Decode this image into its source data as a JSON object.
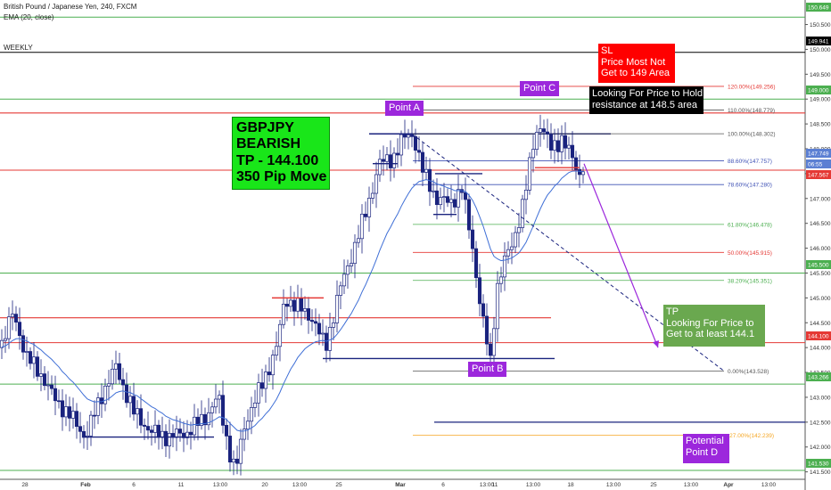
{
  "header": {
    "symbol": "British Pound / Japanese Yen, 240, FXCM",
    "indicator": "EMA (20, close)",
    "timeframe_label": "WEEKLY"
  },
  "chart_data": {
    "type": "candlestick",
    "symbol": "GBPJPY",
    "interval": "240",
    "ylim": [
      141.35,
      150.85
    ],
    "price_ticks": [
      150.5,
      150.0,
      149.5,
      149.0,
      148.5,
      148.0,
      147.5,
      147.0,
      146.5,
      146.0,
      145.5,
      145.0,
      144.5,
      144.0,
      143.5,
      143.0,
      142.5,
      142.0,
      141.5
    ],
    "time_ticks": [
      "28",
      "Feb",
      "6",
      "11",
      "13:00",
      "20",
      "13:00",
      "25",
      "Mar",
      "6",
      "13:00",
      "11",
      "13:00",
      "18",
      "13:00",
      "25",
      "13:00",
      "Apr",
      "13:00"
    ],
    "price_tags": [
      {
        "label": "150.649",
        "color": "#4caf50"
      },
      {
        "label": "149.941",
        "color": "#000000"
      },
      {
        "label": "149.000",
        "color": "#4caf50"
      },
      {
        "label": "147.749",
        "color": "#5b7fd3"
      },
      {
        "label": "06:55",
        "color": "#5b7fd3"
      },
      {
        "label": "147.567",
        "color": "#e53935"
      },
      {
        "label": "145.500",
        "color": "#4caf50"
      },
      {
        "label": "144.100",
        "color": "#e53935"
      },
      {
        "label": "143.266",
        "color": "#4caf50"
      },
      {
        "label": "141.530",
        "color": "#4caf50"
      }
    ],
    "fibonacci": {
      "levels": [
        {
          "label": "120.00%(149.256)",
          "color": "#e53935"
        },
        {
          "label": "110.00%(148.779)",
          "color": "#555555"
        },
        {
          "label": "100.00%(148.302)",
          "color": "#555555"
        },
        {
          "label": "88.60%(147.757)",
          "color": "#3f51b5"
        },
        {
          "label": "78.60%(147.280)",
          "color": "#3f51b5"
        },
        {
          "label": "61.80%(146.478)",
          "color": "#4caf50"
        },
        {
          "label": "50.00%(145.915)",
          "color": "#e53935"
        },
        {
          "label": "38.20%(145.351)",
          "color": "#4caf50"
        },
        {
          "label": "0.00%(143.528)",
          "color": "#555555"
        },
        {
          "label": "-27.00%(142.239)",
          "color": "#f5a623"
        }
      ]
    },
    "annotations": {
      "setup": [
        "GBPJPY",
        "BEARISH",
        "TP - 144.100",
        "350 Pip Move"
      ],
      "stop_loss": [
        "SL",
        "Price Most Not",
        "Get to 149 Area"
      ],
      "resistance_note": [
        "Looking For Price to Hold",
        "resistance at 148.5 area"
      ],
      "take_profit": [
        "TP",
        "Looking For Price to",
        "Get to at least 144.1"
      ],
      "point_a": "Point A",
      "point_b": "Point B",
      "point_c": "Point C",
      "point_d": [
        "Potential",
        "Point D"
      ]
    },
    "colors": {
      "up_candle": "#ffffff",
      "down_candle": "#1a237e",
      "ema": "#3f6fd6",
      "setup_box": "#19e619",
      "sl_box": "#ff0000",
      "tp_box": "#6aa84f",
      "point_box": "#9c27dc",
      "projection": "#9c27dc"
    }
  }
}
